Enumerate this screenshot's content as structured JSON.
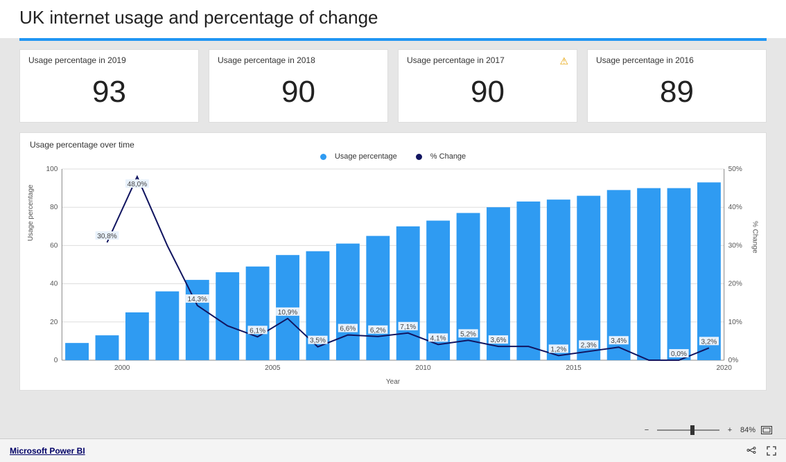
{
  "title": "UK internet usage and percentage of change",
  "accent_color": "#2196f3",
  "cards": [
    {
      "title": "Usage percentage in 2019",
      "value": "93",
      "warning": false
    },
    {
      "title": "Usage percentage in 2018",
      "value": "90",
      "warning": false
    },
    {
      "title": "Usage percentage in 2017",
      "value": "90",
      "warning": true
    },
    {
      "title": "Usage percentage in 2016",
      "value": "89",
      "warning": false
    }
  ],
  "chart": {
    "title": "Usage percentage over time",
    "legend": {
      "bar": "Usage percentage",
      "line": "% Change"
    },
    "type": "bar+line",
    "bar_color": "#2f9bf2",
    "line_color": "#111560",
    "grid_color": "#dddddd",
    "label_box_color": "#e8f1fb",
    "x_label": "Year",
    "y_left": {
      "label": "Usage percentage",
      "min": 0,
      "max": 100,
      "step": 20
    },
    "y_right": {
      "label": "% Change",
      "min": 0,
      "max": 50,
      "step": 10
    },
    "x_ticks": [
      "2000",
      "2005",
      "2010",
      "2015",
      "2020"
    ],
    "x_tick_indices": [
      2,
      7,
      12,
      17,
      22
    ],
    "years": [
      1998,
      1999,
      2000,
      2001,
      2002,
      2003,
      2004,
      2005,
      2006,
      2007,
      2008,
      2009,
      2010,
      2011,
      2012,
      2013,
      2014,
      2015,
      2016,
      2017,
      2018,
      2019
    ],
    "usage": [
      9,
      13,
      25,
      36,
      42,
      46,
      49,
      55,
      57,
      61,
      65,
      70,
      73,
      77,
      80,
      83,
      84,
      86,
      89,
      90,
      90,
      93
    ],
    "change_pct": [
      null,
      30.8,
      48.0,
      null,
      14.3,
      null,
      6.1,
      10.9,
      3.5,
      6.6,
      6.2,
      7.1,
      4.1,
      5.2,
      3.6,
      null,
      1.2,
      2.3,
      3.4,
      null,
      0.0,
      3.2
    ],
    "change_line": [
      null,
      30.8,
      48.0,
      30.0,
      14.3,
      9.0,
      6.1,
      10.9,
      3.5,
      6.6,
      6.2,
      7.1,
      4.1,
      5.2,
      3.6,
      3.6,
      1.2,
      2.3,
      3.4,
      0.0,
      0.0,
      3.2
    ],
    "label_fontsize": 10
  },
  "zoom": {
    "label": "84%"
  },
  "footer_link": "Microsoft Power BI"
}
